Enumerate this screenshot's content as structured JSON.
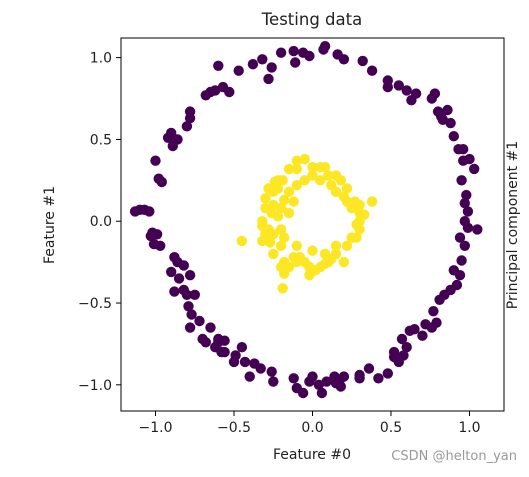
{
  "watermark": "CSDN @helton_yan",
  "chart_data": {
    "type": "scatter",
    "title": "Testing data",
    "xlabel": "Feature #0",
    "ylabel": "Feature #1",
    "right_label": "Principal component #1",
    "xlim": [
      -1.22,
      1.22
    ],
    "ylim": [
      -1.16,
      1.12
    ],
    "x_ticks": [
      -1.0,
      -0.5,
      0.0,
      0.5,
      1.0
    ],
    "x_tick_labels": [
      "−1.0",
      "−0.5",
      "0.0",
      "0.5",
      "1.0"
    ],
    "y_ticks": [
      1.0,
      0.5,
      0.0,
      -0.5,
      -1.0
    ],
    "y_tick_labels": [
      "1.0",
      "0.5",
      "0.0",
      "−0.5",
      "−1.0"
    ],
    "grid": false,
    "legend": "none",
    "colors": {
      "outer": "#440154",
      "inner": "#fde725"
    },
    "series": [
      {
        "key": "outer",
        "points": [
          [
            -0.06,
            1.03
          ],
          [
            0.07,
            1.05
          ],
          [
            0.08,
            1.07
          ],
          [
            -0.2,
            1.03
          ],
          [
            -0.12,
            1.04
          ],
          [
            -0.11,
            0.97
          ],
          [
            -0.32,
            0.99
          ],
          [
            -0.26,
            0.94
          ],
          [
            -0.28,
            0.87
          ],
          [
            -0.38,
            0.96
          ],
          [
            -0.47,
            0.92
          ],
          [
            -0.6,
            0.95
          ],
          [
            -0.57,
            0.82
          ],
          [
            -0.62,
            0.8
          ],
          [
            -0.68,
            0.77
          ],
          [
            -0.53,
            0.79
          ],
          [
            -0.78,
            0.67
          ],
          [
            -0.8,
            0.58
          ],
          [
            -0.78,
            0.63
          ],
          [
            -0.86,
            0.5
          ],
          [
            -0.9,
            0.54
          ],
          [
            -0.89,
            0.46
          ],
          [
            -1.0,
            0.37
          ],
          [
            -0.96,
            0.24
          ],
          [
            -0.98,
            0.26
          ],
          [
            -1.07,
            0.07
          ],
          [
            -1.1,
            0.07
          ],
          [
            -1.04,
            0.06
          ],
          [
            -1.13,
            0.06
          ],
          [
            -1.02,
            -0.07
          ],
          [
            -1.03,
            -0.09
          ],
          [
            -0.99,
            -0.08
          ],
          [
            -1.01,
            -0.14
          ],
          [
            -0.97,
            -0.15
          ],
          [
            -0.88,
            -0.22
          ],
          [
            -0.86,
            -0.25
          ],
          [
            -0.82,
            -0.27
          ],
          [
            -0.9,
            -0.31
          ],
          [
            -0.85,
            -0.35
          ],
          [
            -0.78,
            -0.33
          ],
          [
            -0.82,
            -0.42
          ],
          [
            -0.8,
            -0.45
          ],
          [
            -0.88,
            -0.43
          ],
          [
            -0.75,
            -0.45
          ],
          [
            -0.79,
            -0.52
          ],
          [
            -0.77,
            -0.57
          ],
          [
            -0.78,
            -0.65
          ],
          [
            -0.72,
            -0.61
          ],
          [
            -0.65,
            -0.65
          ],
          [
            -0.7,
            -0.72
          ],
          [
            -0.68,
            -0.74
          ],
          [
            -0.6,
            -0.72
          ],
          [
            -0.56,
            -0.73
          ],
          [
            -0.6,
            -0.74
          ],
          [
            -0.62,
            -0.77
          ],
          [
            -0.58,
            -0.8
          ],
          [
            -0.56,
            -0.8
          ],
          [
            -0.45,
            -0.77
          ],
          [
            -0.5,
            -0.86
          ],
          [
            -0.43,
            -0.86
          ],
          [
            -0.49,
            -0.82
          ],
          [
            -0.37,
            -0.87
          ],
          [
            -0.33,
            -0.9
          ],
          [
            -0.4,
            -0.95
          ],
          [
            -0.26,
            -0.92
          ],
          [
            -0.25,
            -0.98
          ],
          [
            -0.12,
            -0.96
          ],
          [
            -0.1,
            -1.02
          ],
          [
            -0.06,
            -1.05
          ],
          [
            -0.02,
            -0.98
          ],
          [
            0.0,
            -0.95
          ],
          [
            0.04,
            -1.0
          ],
          [
            0.06,
            -1.05
          ],
          [
            0.09,
            -0.98
          ],
          [
            0.14,
            -0.96
          ],
          [
            0.15,
            -0.99
          ],
          [
            0.14,
            -0.95
          ],
          [
            0.18,
            -1.01
          ],
          [
            0.17,
            -0.98
          ],
          [
            0.2,
            -0.95
          ],
          [
            0.3,
            -0.94
          ],
          [
            0.3,
            -0.96
          ],
          [
            0.36,
            -0.9
          ],
          [
            0.42,
            -0.96
          ],
          [
            0.48,
            -0.93
          ],
          [
            0.52,
            -0.83
          ],
          [
            0.55,
            -0.86
          ],
          [
            0.58,
            -0.82
          ],
          [
            0.52,
            -0.8
          ],
          [
            0.57,
            -0.72
          ],
          [
            0.6,
            -0.77
          ],
          [
            0.62,
            -0.67
          ],
          [
            0.65,
            -0.66
          ],
          [
            0.7,
            -0.7
          ],
          [
            0.72,
            -0.63
          ],
          [
            0.76,
            -0.65
          ],
          [
            0.77,
            -0.55
          ],
          [
            0.79,
            -0.62
          ],
          [
            0.81,
            -0.48
          ],
          [
            0.84,
            -0.45
          ],
          [
            0.88,
            -0.42
          ],
          [
            0.92,
            -0.39
          ],
          [
            0.94,
            -0.33
          ],
          [
            0.9,
            -0.3
          ],
          [
            0.95,
            -0.24
          ],
          [
            0.97,
            -0.15
          ],
          [
            0.94,
            -0.1
          ],
          [
            1.05,
            -0.05
          ],
          [
            0.99,
            -0.04
          ],
          [
            0.97,
            0.0
          ],
          [
            0.99,
            0.06
          ],
          [
            0.97,
            0.11
          ],
          [
            0.98,
            0.16
          ],
          [
            0.95,
            0.25
          ],
          [
            1.03,
            0.32
          ],
          [
            0.96,
            0.37
          ],
          [
            0.93,
            0.44
          ],
          [
            0.9,
            0.52
          ],
          [
            0.88,
            0.6
          ],
          [
            0.83,
            0.62
          ],
          [
            0.82,
            0.64
          ],
          [
            0.8,
            0.67
          ],
          [
            0.76,
            0.75
          ],
          [
            0.78,
            0.78
          ],
          [
            0.63,
            0.74
          ],
          [
            0.55,
            0.83
          ],
          [
            0.6,
            0.8
          ],
          [
            0.48,
            0.82
          ],
          [
            0.48,
            0.86
          ],
          [
            0.38,
            0.92
          ],
          [
            0.32,
            0.98
          ],
          [
            0.2,
            0.99
          ],
          [
            0.16,
            1.02
          ],
          [
            -0.02,
            1.01
          ],
          [
            1.0,
            0.38
          ],
          [
            0.96,
            0.44
          ],
          [
            0.86,
            0.68
          ],
          [
            0.66,
            0.78
          ],
          [
            -0.92,
            0.51
          ],
          [
            -0.65,
            0.79
          ]
        ]
      },
      {
        "key": "inner",
        "points": [
          [
            -0.05,
            0.38
          ],
          [
            0.0,
            0.33
          ],
          [
            0.05,
            0.33
          ],
          [
            0.08,
            0.33
          ],
          [
            0.1,
            0.28
          ],
          [
            0.15,
            0.28
          ],
          [
            -0.1,
            0.32
          ],
          [
            -0.15,
            0.32
          ],
          [
            -0.19,
            0.25
          ],
          [
            -0.22,
            0.25
          ],
          [
            -0.24,
            0.24
          ],
          [
            -0.22,
            0.2
          ],
          [
            -0.25,
            0.18
          ],
          [
            -0.28,
            0.2
          ],
          [
            -0.3,
            0.14
          ],
          [
            -0.3,
            0.08
          ],
          [
            -0.26,
            0.05
          ],
          [
            -0.32,
            0.0
          ],
          [
            -0.28,
            -0.05
          ],
          [
            -0.3,
            -0.08
          ],
          [
            -0.32,
            -0.12
          ],
          [
            -0.27,
            -0.13
          ],
          [
            -0.2,
            -0.15
          ],
          [
            -0.25,
            -0.2
          ],
          [
            -0.2,
            -0.28
          ],
          [
            -0.15,
            -0.28
          ],
          [
            -0.18,
            -0.25
          ],
          [
            -0.12,
            -0.22
          ],
          [
            -0.1,
            -0.15
          ],
          [
            -0.08,
            -0.22
          ],
          [
            -0.05,
            -0.25
          ],
          [
            -0.02,
            -0.28
          ],
          [
            0.02,
            -0.3
          ],
          [
            0.05,
            -0.28
          ],
          [
            0.08,
            -0.26
          ],
          [
            0.1,
            -0.25
          ],
          [
            0.12,
            -0.23
          ],
          [
            0.15,
            -0.2
          ],
          [
            0.15,
            -0.15
          ],
          [
            0.22,
            -0.15
          ],
          [
            0.25,
            -0.1
          ],
          [
            0.28,
            -0.1
          ],
          [
            0.3,
            -0.05
          ],
          [
            0.3,
            0.0
          ],
          [
            0.3,
            0.05
          ],
          [
            0.28,
            0.08
          ],
          [
            0.25,
            0.08
          ],
          [
            0.22,
            0.12
          ],
          [
            0.2,
            0.15
          ],
          [
            0.15,
            0.18
          ],
          [
            0.12,
            0.22
          ],
          [
            0.05,
            0.25
          ],
          [
            0.0,
            0.28
          ],
          [
            -0.05,
            0.25
          ],
          [
            -0.1,
            0.22
          ],
          [
            -0.15,
            0.18
          ],
          [
            -0.18,
            0.13
          ],
          [
            -0.2,
            0.08
          ],
          [
            -0.22,
            0.03
          ],
          [
            -0.15,
            0.05
          ],
          [
            -0.2,
            -0.05
          ],
          [
            -0.18,
            -0.1
          ],
          [
            -0.1,
            -0.25
          ],
          [
            0.0,
            -0.18
          ],
          [
            0.2,
            -0.25
          ],
          [
            0.27,
            0.12
          ],
          [
            0.28,
            -0.02
          ],
          [
            0.38,
            0.12
          ],
          [
            -0.45,
            -0.12
          ],
          [
            -0.18,
            -0.32
          ],
          [
            -0.02,
            -0.33
          ],
          [
            -0.1,
            0.37
          ],
          [
            0.18,
            0.25
          ],
          [
            0.22,
            0.2
          ],
          [
            0.3,
            0.1
          ],
          [
            0.33,
            0.04
          ],
          [
            -0.25,
            0.1
          ],
          [
            -0.32,
            -0.03
          ],
          [
            -0.25,
            -0.08
          ],
          [
            0.08,
            -0.2
          ],
          [
            -0.19,
            -0.41
          ],
          [
            -0.12,
            0.12
          ]
        ]
      }
    ]
  }
}
